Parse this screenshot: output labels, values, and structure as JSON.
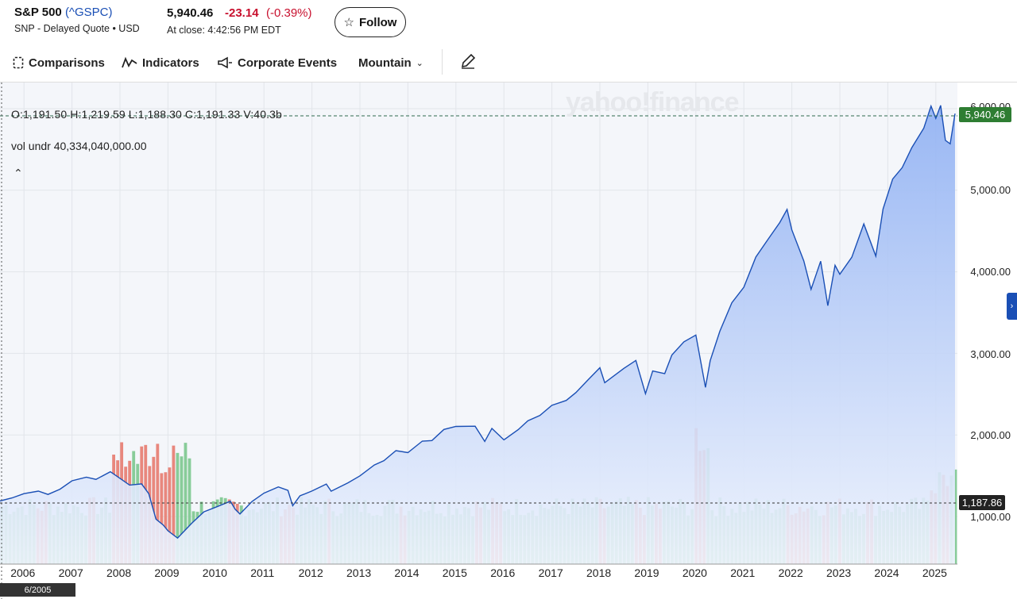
{
  "header": {
    "name": "S&P 500",
    "ticker": "(^GSPC)",
    "subtitle": "SNP - Delayed Quote • USD",
    "price": "5,940.46",
    "change": "-23.14",
    "change_pct": "(-0.39%)",
    "close_time": "At close: 4:42:56 PM EDT",
    "follow_label": "Follow"
  },
  "toolbar": {
    "comparisons": "Comparisons",
    "indicators": "Indicators",
    "events": "Corporate Events",
    "chart_type": "Mountain"
  },
  "legend": {
    "ohlc": "O:1,191.50   H:1,219.59   L:1,188.30   C:1,191.33   V:40.3b",
    "vol_undr": "vol undr   40,334,040,000.00"
  },
  "watermark": "yahoo!finance",
  "badges": {
    "price": "5,940.46",
    "hover_value": "1,187.86",
    "date": "6/2005"
  },
  "colors": {
    "line": "#1a4fb5",
    "area_top": "#8fb0f3",
    "vol_up": "#88cc99",
    "vol_down": "#e8877d",
    "negative": "#c8102e"
  },
  "chart_data": {
    "type": "area",
    "title": "S&P 500 (^GSPC)",
    "xlabel": "",
    "ylabel": "",
    "ylim": [
      500,
      6400
    ],
    "y_ticks": [
      "6,000.00",
      "5,000.00",
      "4,000.00",
      "3,000.00",
      "2,000.00",
      "1,000.00"
    ],
    "y_tick_values": [
      6000,
      5000,
      4000,
      3000,
      2000,
      1000
    ],
    "x_ticks": [
      "2006",
      "2007",
      "2008",
      "2009",
      "2010",
      "2011",
      "2012",
      "2013",
      "2014",
      "2015",
      "2016",
      "2017",
      "2018",
      "2019",
      "2020",
      "2021",
      "2022",
      "2023",
      "2024",
      "2025"
    ],
    "x_tick_years": [
      2006,
      2007,
      2008,
      2009,
      2010,
      2011,
      2012,
      2013,
      2014,
      2015,
      2016,
      2017,
      2018,
      2019,
      2020,
      2021,
      2022,
      2023,
      2024,
      2025
    ],
    "x_range": [
      2005.5,
      2025.45
    ],
    "series": [
      {
        "name": "Close",
        "points": [
          [
            2005.5,
            1191
          ],
          [
            2005.75,
            1228
          ],
          [
            2006.0,
            1280
          ],
          [
            2006.3,
            1311
          ],
          [
            2006.5,
            1270
          ],
          [
            2006.75,
            1335
          ],
          [
            2007.0,
            1438
          ],
          [
            2007.3,
            1482
          ],
          [
            2007.5,
            1455
          ],
          [
            2007.8,
            1549
          ],
          [
            2008.0,
            1468
          ],
          [
            2008.2,
            1385
          ],
          [
            2008.45,
            1400
          ],
          [
            2008.6,
            1280
          ],
          [
            2008.75,
            968
          ],
          [
            2008.9,
            896
          ],
          [
            2009.0,
            825
          ],
          [
            2009.2,
            735
          ],
          [
            2009.3,
            797
          ],
          [
            2009.5,
            919
          ],
          [
            2009.75,
            1057
          ],
          [
            2010.0,
            1115
          ],
          [
            2010.3,
            1187
          ],
          [
            2010.4,
            1089
          ],
          [
            2010.5,
            1030
          ],
          [
            2010.75,
            1183
          ],
          [
            2011.0,
            1286
          ],
          [
            2011.3,
            1363
          ],
          [
            2011.5,
            1320
          ],
          [
            2011.6,
            1131
          ],
          [
            2011.75,
            1253
          ],
          [
            2012.0,
            1312
          ],
          [
            2012.3,
            1398
          ],
          [
            2012.4,
            1310
          ],
          [
            2012.75,
            1412
          ],
          [
            2013.0,
            1498
          ],
          [
            2013.3,
            1631
          ],
          [
            2013.5,
            1685
          ],
          [
            2013.75,
            1807
          ],
          [
            2014.0,
            1783
          ],
          [
            2014.3,
            1924
          ],
          [
            2014.5,
            1931
          ],
          [
            2014.75,
            2067
          ],
          [
            2015.0,
            2104
          ],
          [
            2015.4,
            2107
          ],
          [
            2015.6,
            1920
          ],
          [
            2015.75,
            2080
          ],
          [
            2016.0,
            1940
          ],
          [
            2016.3,
            2065
          ],
          [
            2016.5,
            2173
          ],
          [
            2016.75,
            2239
          ],
          [
            2017.0,
            2363
          ],
          [
            2017.3,
            2423
          ],
          [
            2017.5,
            2519
          ],
          [
            2017.75,
            2673
          ],
          [
            2018.0,
            2824
          ],
          [
            2018.1,
            2640
          ],
          [
            2018.5,
            2816
          ],
          [
            2018.75,
            2913
          ],
          [
            2018.95,
            2506
          ],
          [
            2019.1,
            2784
          ],
          [
            2019.35,
            2752
          ],
          [
            2019.5,
            2980
          ],
          [
            2019.75,
            3141
          ],
          [
            2020.0,
            3225
          ],
          [
            2020.2,
            2584
          ],
          [
            2020.3,
            2912
          ],
          [
            2020.5,
            3271
          ],
          [
            2020.75,
            3621
          ],
          [
            2021.0,
            3811
          ],
          [
            2021.25,
            4181
          ],
          [
            2021.5,
            4395
          ],
          [
            2021.75,
            4605
          ],
          [
            2021.9,
            4766
          ],
          [
            2022.0,
            4515
          ],
          [
            2022.25,
            4132
          ],
          [
            2022.4,
            3785
          ],
          [
            2022.6,
            4130
          ],
          [
            2022.75,
            3585
          ],
          [
            2022.9,
            4080
          ],
          [
            2023.0,
            3970
          ],
          [
            2023.25,
            4179
          ],
          [
            2023.5,
            4588
          ],
          [
            2023.75,
            4193
          ],
          [
            2023.9,
            4770
          ],
          [
            2024.1,
            5137
          ],
          [
            2024.3,
            5277
          ],
          [
            2024.5,
            5522
          ],
          [
            2024.75,
            5762
          ],
          [
            2024.9,
            6032
          ],
          [
            2025.0,
            5881
          ],
          [
            2025.1,
            6040
          ],
          [
            2025.2,
            5612
          ],
          [
            2025.3,
            5569
          ],
          [
            2025.4,
            5940
          ]
        ]
      }
    ],
    "volume_bars": 240
  }
}
